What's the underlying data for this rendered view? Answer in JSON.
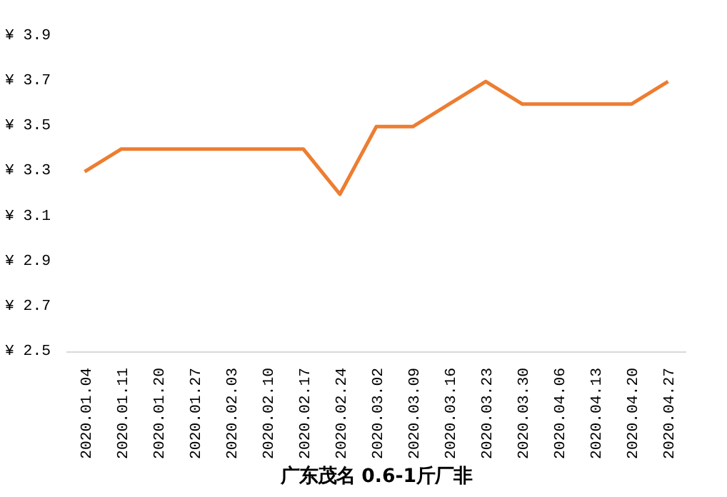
{
  "chart_data": {
    "type": "line",
    "xlabel": "广东茂名 0.6-1斤厂非",
    "categories": [
      "2020.01.04",
      "2020.01.11",
      "2020.01.20",
      "2020.01.27",
      "2020.02.03",
      "2020.02.10",
      "2020.02.17",
      "2020.02.24",
      "2020.03.02",
      "2020.03.09",
      "2020.03.16",
      "2020.03.23",
      "2020.03.30",
      "2020.04.06",
      "2020.04.13",
      "2020.04.20",
      "2020.04.27"
    ],
    "series": [
      {
        "color": "#ed7d31",
        "values": [
          3.3,
          3.4,
          3.4,
          3.4,
          3.4,
          3.4,
          3.4,
          3.2,
          3.5,
          3.5,
          3.6,
          3.7,
          3.6,
          3.6,
          3.6,
          3.6,
          3.7
        ]
      }
    ],
    "ylim": [
      2.5,
      3.9
    ],
    "yticks": [
      {
        "value": 2.5,
        "label": "¥ 2.5"
      },
      {
        "value": 2.7,
        "label": "¥ 2.7"
      },
      {
        "value": 2.9,
        "label": "¥ 2.9"
      },
      {
        "value": 3.1,
        "label": "¥ 3.1"
      },
      {
        "value": 3.3,
        "label": "¥ 3.3"
      },
      {
        "value": 3.5,
        "label": "¥ 3.5"
      },
      {
        "value": 3.7,
        "label": "¥ 3.7"
      },
      {
        "value": 3.9,
        "label": "¥ 3.9"
      }
    ],
    "grid": false,
    "marker": "none",
    "line_style": "solid"
  }
}
